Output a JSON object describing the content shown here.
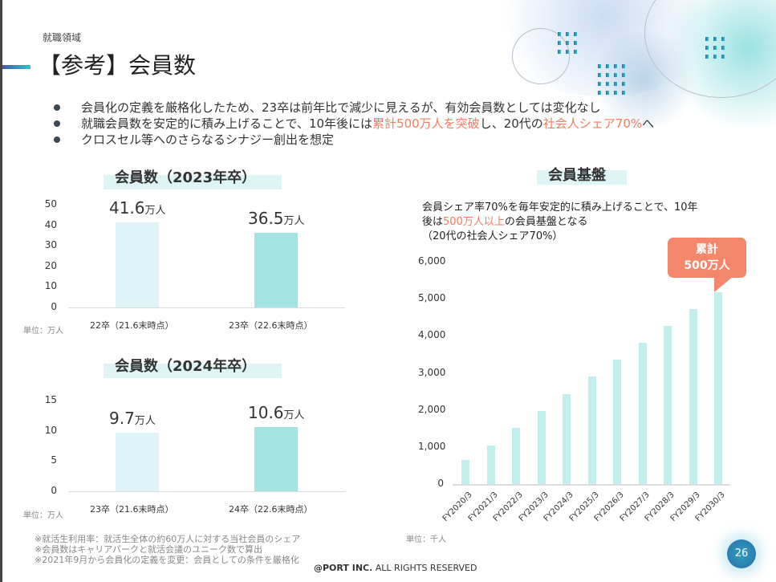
{
  "header": {
    "section": "就職領域",
    "title": "【参考】会員数"
  },
  "bullets": [
    {
      "parts": [
        {
          "t": "会員化の定義を厳格化したため、23卒は前年比で減少に見えるが、有効会員数としては変化なし"
        }
      ]
    },
    {
      "parts": [
        {
          "t": "就職会員数を安定的に積み上げることで、10年後には"
        },
        {
          "t": "累計500万人を突破",
          "hl": true
        },
        {
          "t": "し、20代の"
        },
        {
          "t": "社会人シェア70%",
          "hl": true
        },
        {
          "t": "へ"
        }
      ]
    },
    {
      "parts": [
        {
          "t": "クロスセル等へのさらなるシナジー創出を想定"
        }
      ]
    }
  ],
  "colors": {
    "highlight": "#f47b5e",
    "bar_light": "#dff4f6",
    "bar_dark": "#a3e4e2",
    "bar_growth": "#c2eeee",
    "callout": "#f4866b",
    "accent": "#2ec4c4"
  },
  "chart_data": [
    {
      "type": "bar",
      "title": "会員数（2023年卒）",
      "categories": [
        "22卒（21.6末時点）",
        "23卒（22.6末時点）"
      ],
      "values": [
        41.6,
        36.5
      ],
      "data_labels": [
        {
          "num": "41.6",
          "unit": "万人"
        },
        {
          "num": "36.5",
          "unit": "万人"
        }
      ],
      "yticks": [
        0,
        10,
        20,
        30,
        40,
        50
      ],
      "ylim": [
        0,
        50
      ],
      "unit": "単位：万人"
    },
    {
      "type": "bar",
      "title": "会員数（2024年卒）",
      "categories": [
        "23卒（21.6末時点）",
        "24卒（22.6末時点）"
      ],
      "values": [
        9.7,
        10.6
      ],
      "data_labels": [
        {
          "num": "9.7",
          "unit": "万人"
        },
        {
          "num": "10.6",
          "unit": "万人"
        }
      ],
      "yticks": [
        0,
        5,
        10,
        15
      ],
      "ylim": [
        0,
        15
      ],
      "unit": "単位：万人"
    },
    {
      "type": "bar",
      "title": "会員基盤",
      "description": [
        "会員シェア率70%を毎年安定的に積み上げることで、10年",
        "後は",
        "500万人以上",
        "の会員基盤となる",
        "（20代の社会人シェア70%）"
      ],
      "categories": [
        "FY2020/3",
        "FY2021/3",
        "FY2022/3",
        "FY2023/3",
        "FY2024/3",
        "FY2025/3",
        "FY2026/3",
        "FY2027/3",
        "FY2028/3",
        "FY2029/3",
        "FY2030/3"
      ],
      "values": [
        650,
        1040,
        1520,
        1970,
        2430,
        2900,
        3360,
        3810,
        4270,
        4720,
        5180
      ],
      "yticks": [
        "0",
        "1,000",
        "2,000",
        "3,000",
        "4,000",
        "5,000",
        "6,000"
      ],
      "ylim": [
        0,
        6000
      ],
      "unit": "単位：千人",
      "callout": [
        "累計",
        "500万人"
      ]
    }
  ],
  "footnotes": [
    "※就活生利用率：就活生全体の約60万人に対する当社会員のシェア",
    "※会員数はキャリアパークと就活会議のユニーク数で算出",
    "※2021年9月から会員化の定義を変更：会員としての条件を厳格化"
  ],
  "footer": {
    "copyright_bold": "@PORT INC.",
    "copyright": " ALL RIGHTS RESERVED",
    "page": "26"
  }
}
